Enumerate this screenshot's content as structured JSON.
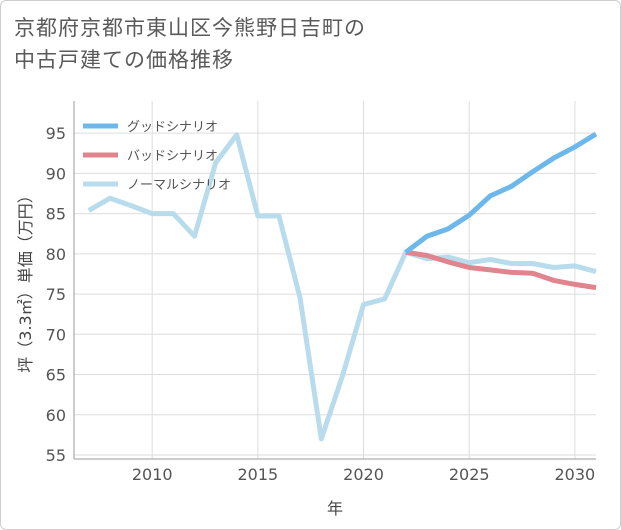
{
  "title": {
    "line1": "京都府京都市東山区今熊野日吉町の",
    "line2": "中古戸建ての価格推移"
  },
  "colors": {
    "good": "#6cb8ec",
    "bad": "#e0848e",
    "normal": "#b8dcec",
    "grid": "#dddddd",
    "axis": "#999999"
  },
  "chart_data": {
    "type": "line",
    "title": "京都府京都市東山区今熊野日吉町の中古戸建ての価格推移",
    "xlabel": "年",
    "ylabel": "坪（3.3㎡）単価（万円）",
    "xlim": [
      2006.3,
      2031
    ],
    "ylim": [
      54.5,
      99
    ],
    "xticks": [
      2010,
      2015,
      2020,
      2025,
      2030
    ],
    "yticks": [
      55,
      60,
      65,
      70,
      75,
      80,
      85,
      90,
      95
    ],
    "legend_position": "top-left",
    "series": [
      {
        "key": "good",
        "name": "グッドシナリオ",
        "x": [
          2022,
          2023,
          2024,
          2025,
          2026,
          2027,
          2028,
          2029,
          2030,
          2031
        ],
        "values": [
          80.2,
          82.2,
          83.1,
          84.8,
          87.2,
          88.4,
          90.2,
          91.9,
          93.3,
          94.9
        ]
      },
      {
        "key": "bad",
        "name": "バッドシナリオ",
        "x": [
          2022,
          2023,
          2024,
          2025,
          2026,
          2027,
          2028,
          2029,
          2030,
          2031
        ],
        "values": [
          80.2,
          79.8,
          79.0,
          78.3,
          78.0,
          77.7,
          77.6,
          76.7,
          76.2,
          75.8
        ]
      },
      {
        "key": "normal",
        "name": "ノーマルシナリオ",
        "x": [
          2007,
          2008,
          2009,
          2010,
          2011,
          2012,
          2013,
          2014,
          2015,
          2016,
          2017,
          2018,
          2019,
          2020,
          2021,
          2022,
          2023,
          2024,
          2025,
          2026,
          2027,
          2028,
          2029,
          2030,
          2031
        ],
        "values": [
          85.4,
          86.9,
          86.0,
          85.0,
          85.0,
          82.2,
          91.3,
          94.8,
          84.7,
          84.7,
          74.5,
          57.0,
          64.8,
          73.7,
          74.4,
          80.2,
          79.4,
          79.6,
          78.9,
          79.3,
          78.8,
          78.8,
          78.3,
          78.5,
          77.8
        ]
      }
    ]
  }
}
